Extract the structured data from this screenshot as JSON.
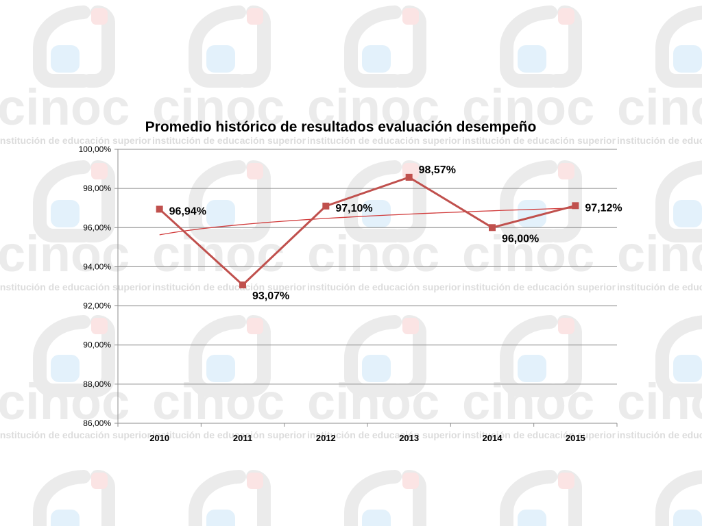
{
  "watermark": {
    "brand": "cinoc",
    "tagline": "institución de educación superior",
    "colors": {
      "gray": "#ebebeb",
      "blue": "#e3f1fb",
      "red": "#fbe4e4",
      "text": "#dcdcdc"
    }
  },
  "chart_data": {
    "type": "line",
    "title": "Promedio histórico de resultados evaluación desempeño",
    "xlabel": "",
    "ylabel": "",
    "categories": [
      "2010",
      "2011",
      "2012",
      "2013",
      "2014",
      "2015"
    ],
    "series": [
      {
        "values": [
          96.94,
          93.07,
          97.1,
          98.57,
          96.0,
          97.12
        ],
        "data_labels": [
          "96,94%",
          "93,07%",
          "97,10%",
          "98,57%",
          "96,00%",
          "97,12%"
        ],
        "color": "#c0504d"
      }
    ],
    "trendline": {
      "type": "logarithmic",
      "color": "#d13b3b"
    },
    "ylim": [
      86,
      100
    ],
    "yticks": [
      86,
      88,
      90,
      92,
      94,
      96,
      98,
      100
    ],
    "ytick_labels": [
      "86,00%",
      "88,00%",
      "90,00%",
      "92,00%",
      "94,00%",
      "96,00%",
      "98,00%",
      "100,00%"
    ],
    "grid": true,
    "legend": "none"
  }
}
